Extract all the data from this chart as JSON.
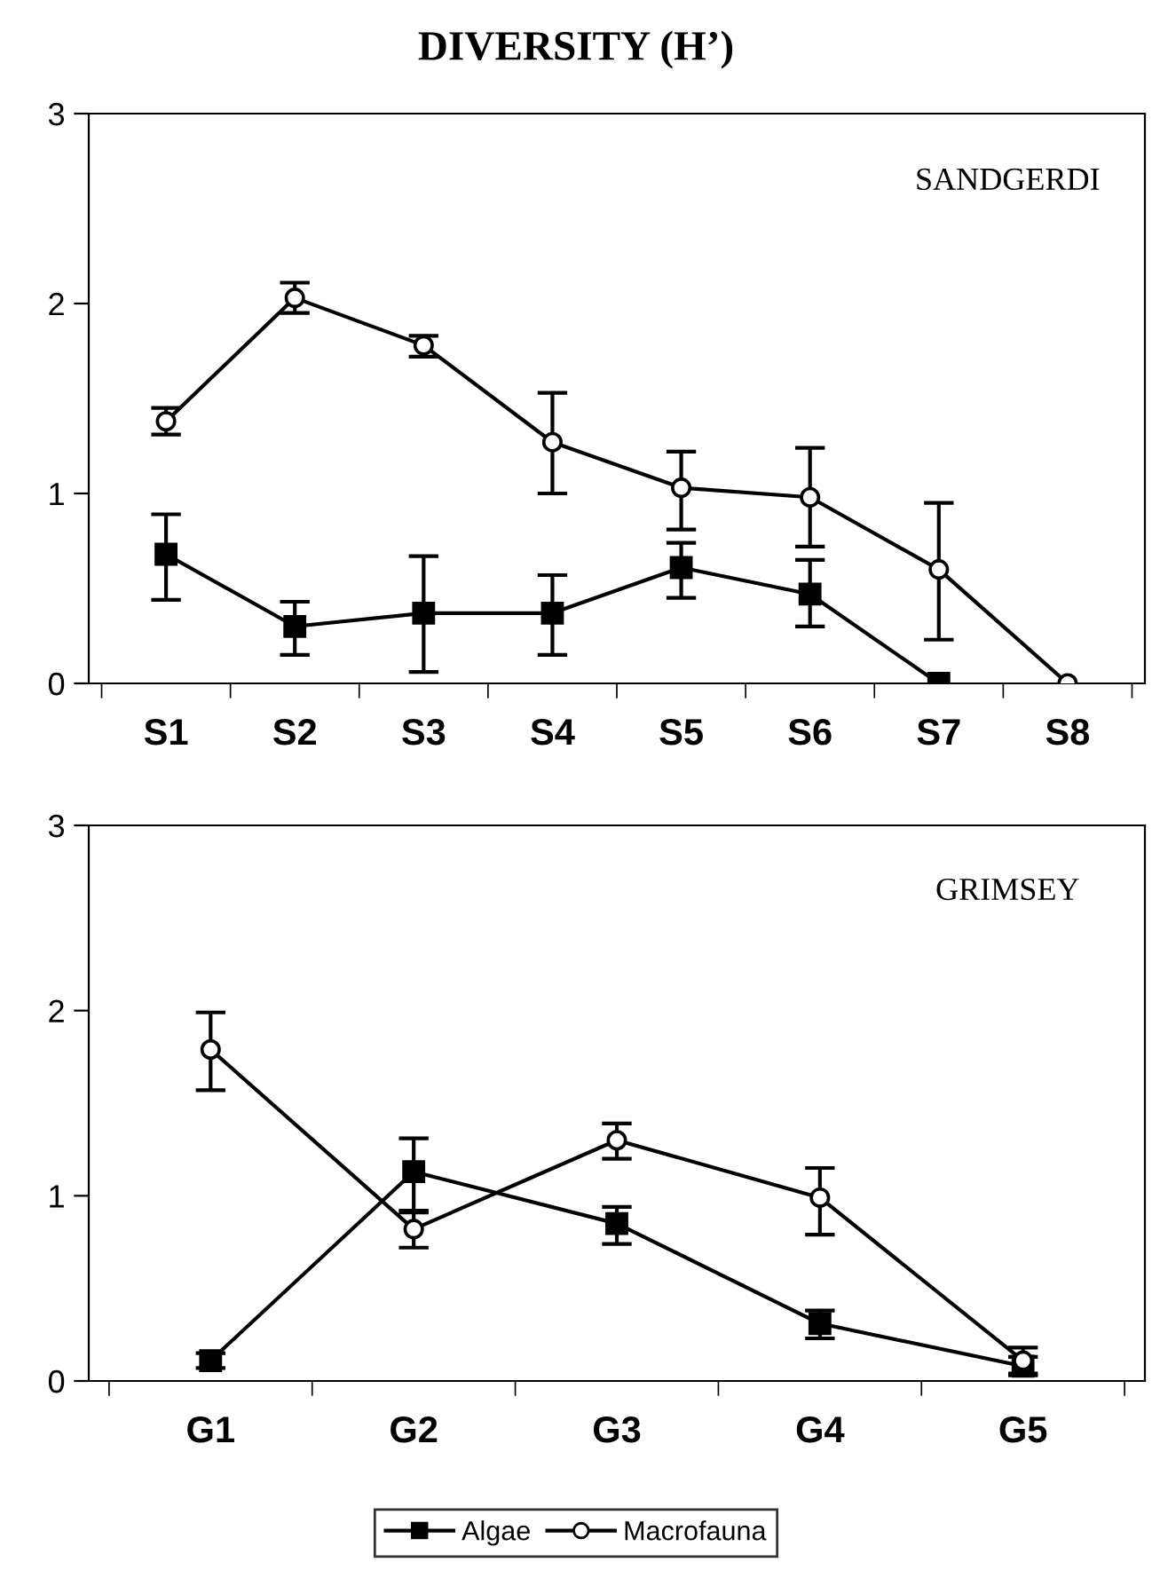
{
  "chart_data": [
    {
      "type": "line",
      "title": "DIVERSITY (H’)",
      "annotations": [
        "SANDGERDI"
      ],
      "categories": [
        "S1",
        "S2",
        "S3",
        "S4",
        "S5",
        "S6",
        "S7",
        "S8"
      ],
      "ylim": [
        0,
        3
      ],
      "yticks": [
        0,
        1,
        2,
        3
      ],
      "grid": false,
      "legend": "bottom",
      "series": [
        {
          "name": "Algae",
          "color": "#000000",
          "marker": "square",
          "values": [
            0.68,
            0.3,
            0.37,
            0.37,
            0.61,
            0.47,
            0,
            null
          ],
          "errors": [
            [
              0.44,
              0.89
            ],
            [
              0.15,
              0.43
            ],
            [
              0.06,
              0.67
            ],
            [
              0.15,
              0.57
            ],
            [
              0.45,
              0.74
            ],
            [
              0.3,
              0.65
            ],
            null,
            null
          ]
        },
        {
          "name": "Macrofauna",
          "color": "#000000",
          "marker": "circle",
          "values": [
            1.38,
            2.03,
            1.78,
            1.27,
            1.03,
            0.98,
            0.6,
            0
          ],
          "errors": [
            [
              1.31,
              1.45
            ],
            [
              1.95,
              2.11
            ],
            [
              1.72,
              1.83
            ],
            [
              1.0,
              1.53
            ],
            [
              0.81,
              1.22
            ],
            [
              0.72,
              1.24
            ],
            [
              0.23,
              0.95
            ],
            null
          ]
        }
      ]
    },
    {
      "type": "line",
      "annotations": [
        "GRIMSEY"
      ],
      "categories": [
        "G1",
        "G2",
        "G3",
        "G4",
        "G5"
      ],
      "ylim": [
        0,
        3
      ],
      "yticks": [
        0,
        1,
        2,
        3
      ],
      "grid": false,
      "series": [
        {
          "color": "#000000",
          "marker": "square",
          "values": [
            0.11,
            1.13,
            0.85,
            0.31,
            0.08
          ],
          "errors": [
            [
              0.07,
              0.15
            ],
            [
              0.91,
              1.31
            ],
            [
              0.74,
              0.94
            ],
            [
              0.23,
              0.38
            ],
            [
              0.03,
              0.13
            ]
          ]
        },
        {
          "color": "#000000",
          "marker": "circle",
          "values": [
            1.79,
            0.82,
            1.3,
            0.99,
            0.11
          ],
          "errors": [
            [
              1.57,
              1.99
            ],
            [
              0.72,
              0.92
            ],
            [
              1.2,
              1.39
            ],
            [
              0.79,
              1.15
            ],
            [
              0.04,
              0.18
            ]
          ]
        }
      ]
    }
  ]
}
